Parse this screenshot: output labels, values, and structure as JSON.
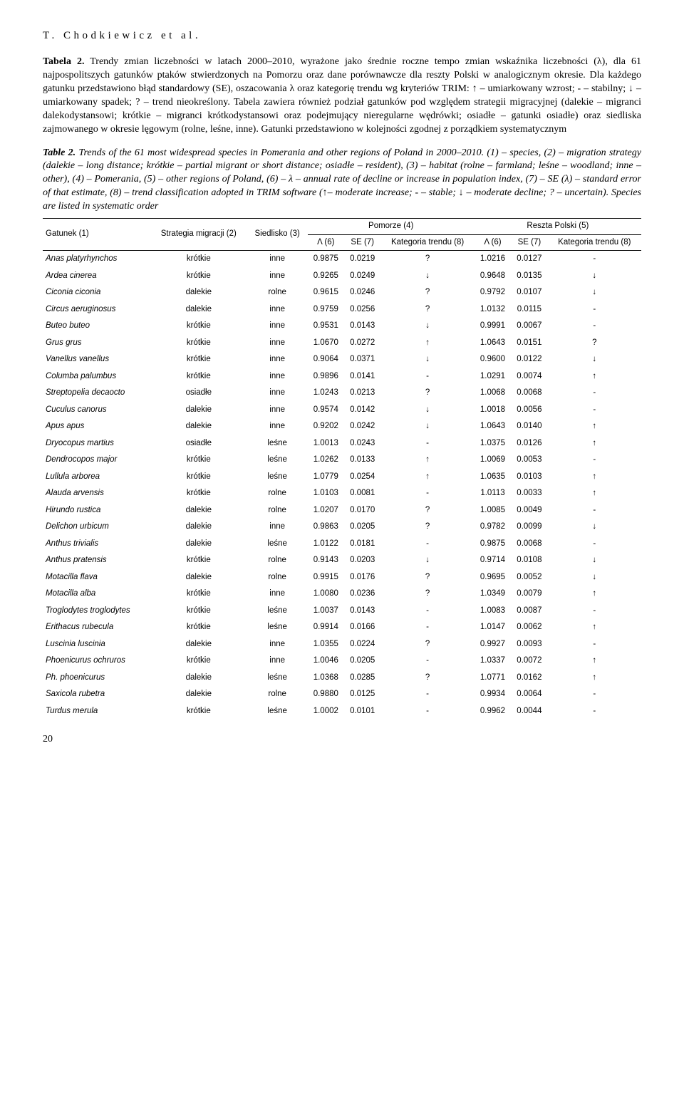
{
  "running_head": "T. Chodkiewicz et al.",
  "caption_pl_label": "Tabela 2.",
  "caption_pl_text": " Trendy zmian liczebności w latach 2000–2010, wyrażone jako średnie roczne tempo zmian wskaźnika liczebności (λ), dla 61 najpospolitszych gatunków ptaków stwierdzonych na Pomorzu oraz dane porównawcze dla reszty Polski w analogicznym okresie. Dla każdego gatunku przedstawiono błąd standardowy (SE), oszacowania λ oraz kategorię trendu wg kryteriów TRIM: ↑ – umiarkowany wzrost; - – stabilny; ↓ – umiarkowany spadek; ? – trend nieokreślony. Tabela zawiera również podział gatunków pod względem strategii migracyjnej (dalekie – migranci dalekodystansowi; krótkie – migranci krótkodystansowi oraz podejmujący nieregularne wędrówki; osiadłe – gatunki osiadłe) oraz siedliska zajmowanego w okresie lęgowym (rolne, leśne, inne). Gatunki przedstawiono w kolejności zgodnej z porządkiem systematycznym",
  "caption_en_label": "Table 2.",
  "caption_en_text": " Trends of the 61 most widespread species in Pomerania and other regions of Poland in 2000–2010. (1) – species, (2) – migration strategy (dalekie – long distance; krótkie – partial migrant or short distance; osiadłe – resident), (3) – habitat (rolne – farmland; leśne – woodland; inne – other), (4) – Pomerania, (5) – other regions of Poland, (6) – λ – annual rate of decline or increase in population index, (7) – SE (λ) – standard error of that estimate, (8) – trend classification adopted in TRIM software (↑– moderate increase; - – stable; ↓ – moderate decline; ? – uncertain). Species are listed in systematic order",
  "table": {
    "columns": {
      "species": "Gatunek (1)",
      "strategy": "Strategia migracji (2)",
      "habitat": "Siedlisko (3)",
      "group_pomerania": "Pomorze (4)",
      "group_rest": "Reszta Polski (5)",
      "lambda": "Λ (6)",
      "se": "SE (7)",
      "trend": "Kategoria trendu (8)"
    },
    "rows": [
      [
        "Anas platyrhynchos",
        "krótkie",
        "inne",
        "0.9875",
        "0.0219",
        "?",
        "1.0216",
        "0.0127",
        "-"
      ],
      [
        "Ardea cinerea",
        "krótkie",
        "inne",
        "0.9265",
        "0.0249",
        "↓",
        "0.9648",
        "0.0135",
        "↓"
      ],
      [
        "Ciconia ciconia",
        "dalekie",
        "rolne",
        "0.9615",
        "0.0246",
        "?",
        "0.9792",
        "0.0107",
        "↓"
      ],
      [
        "Circus aeruginosus",
        "dalekie",
        "inne",
        "0.9759",
        "0.0256",
        "?",
        "1.0132",
        "0.0115",
        "-"
      ],
      [
        "Buteo buteo",
        "krótkie",
        "inne",
        "0.9531",
        "0.0143",
        "↓",
        "0.9991",
        "0.0067",
        "-"
      ],
      [
        "Grus grus",
        "krótkie",
        "inne",
        "1.0670",
        "0.0272",
        "↑",
        "1.0643",
        "0.0151",
        "?"
      ],
      [
        "Vanellus vanellus",
        "krótkie",
        "inne",
        "0.9064",
        "0.0371",
        "↓",
        "0.9600",
        "0.0122",
        "↓"
      ],
      [
        "Columba palumbus",
        "krótkie",
        "inne",
        "0.9896",
        "0.0141",
        "-",
        "1.0291",
        "0.0074",
        "↑"
      ],
      [
        "Streptopelia decaocto",
        "osiadłe",
        "inne",
        "1.0243",
        "0.0213",
        "?",
        "1.0068",
        "0.0068",
        "-"
      ],
      [
        "Cuculus canorus",
        "dalekie",
        "inne",
        "0.9574",
        "0.0142",
        "↓",
        "1.0018",
        "0.0056",
        "-"
      ],
      [
        "Apus apus",
        "dalekie",
        "inne",
        "0.9202",
        "0.0242",
        "↓",
        "1.0643",
        "0.0140",
        "↑"
      ],
      [
        "Dryocopus martius",
        "osiadłe",
        "leśne",
        "1.0013",
        "0.0243",
        "-",
        "1.0375",
        "0.0126",
        "↑"
      ],
      [
        "Dendrocopos major",
        "krótkie",
        "leśne",
        "1.0262",
        "0.0133",
        "↑",
        "1.0069",
        "0.0053",
        "-"
      ],
      [
        "Lullula arborea",
        "krótkie",
        "leśne",
        "1.0779",
        "0.0254",
        "↑",
        "1.0635",
        "0.0103",
        "↑"
      ],
      [
        "Alauda arvensis",
        "krótkie",
        "rolne",
        "1.0103",
        "0.0081",
        "-",
        "1.0113",
        "0.0033",
        "↑"
      ],
      [
        "Hirundo rustica",
        "dalekie",
        "rolne",
        "1.0207",
        "0.0170",
        "?",
        "1.0085",
        "0.0049",
        "-"
      ],
      [
        "Delichon urbicum",
        "dalekie",
        "inne",
        "0.9863",
        "0.0205",
        "?",
        "0.9782",
        "0.0099",
        "↓"
      ],
      [
        "Anthus trivialis",
        "dalekie",
        "leśne",
        "1.0122",
        "0.0181",
        "-",
        "0.9875",
        "0.0068",
        "-"
      ],
      [
        "Anthus pratensis",
        "krótkie",
        "rolne",
        "0.9143",
        "0.0203",
        "↓",
        "0.9714",
        "0.0108",
        "↓"
      ],
      [
        "Motacilla flava",
        "dalekie",
        "rolne",
        "0.9915",
        "0.0176",
        "?",
        "0.9695",
        "0.0052",
        "↓"
      ],
      [
        "Motacilla alba",
        "krótkie",
        "inne",
        "1.0080",
        "0.0236",
        "?",
        "1.0349",
        "0.0079",
        "↑"
      ],
      [
        "Troglodytes troglodytes",
        "krótkie",
        "leśne",
        "1.0037",
        "0.0143",
        "-",
        "1.0083",
        "0.0087",
        "-"
      ],
      [
        "Erithacus rubecula",
        "krótkie",
        "leśne",
        "0.9914",
        "0.0166",
        "-",
        "1.0147",
        "0.0062",
        "↑"
      ],
      [
        "Luscinia luscinia",
        "dalekie",
        "inne",
        "1.0355",
        "0.0224",
        "?",
        "0.9927",
        "0.0093",
        "-"
      ],
      [
        "Phoenicurus ochruros",
        "krótkie",
        "inne",
        "1.0046",
        "0.0205",
        "-",
        "1.0337",
        "0.0072",
        "↑"
      ],
      [
        "Ph. phoenicurus",
        "dalekie",
        "leśne",
        "1.0368",
        "0.0285",
        "?",
        "1.0771",
        "0.0162",
        "↑"
      ],
      [
        "Saxicola rubetra",
        "dalekie",
        "rolne",
        "0.9880",
        "0.0125",
        "-",
        "0.9934",
        "0.0064",
        "-"
      ],
      [
        "Turdus merula",
        "krótkie",
        "leśne",
        "1.0002",
        "0.0101",
        "-",
        "0.9962",
        "0.0044",
        "-"
      ]
    ]
  },
  "page_number": "20"
}
